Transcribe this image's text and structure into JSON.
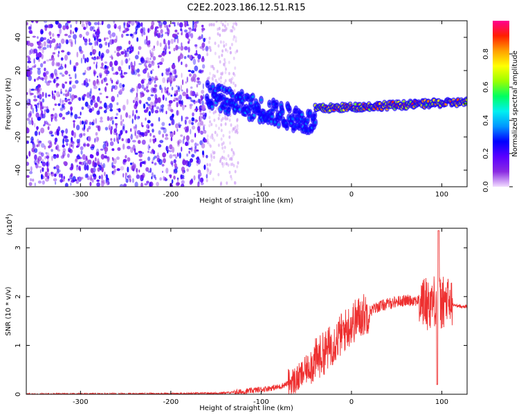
{
  "title": "C2E2.2023.186.12.51.R15",
  "chart_data": [
    {
      "type": "heatmap",
      "xlabel": "Height of straight line (km)",
      "ylabel": "Frequency (Hz)",
      "xlim": [
        -360,
        128
      ],
      "ylim": [
        -50,
        50
      ],
      "xticks": [
        -300,
        -200,
        -100,
        0,
        100
      ],
      "yticks": [
        -40,
        -20,
        0,
        20,
        40
      ],
      "colorbar": {
        "label": "Normalized spectral amplitude",
        "range": [
          0.0,
          1.0
        ],
        "ticks": [
          "0.0",
          "0.2",
          "0.4",
          "0.6",
          "0.8"
        ],
        "colormap": [
          "#f2ddff",
          "#8a2be2",
          "#5a00ff",
          "#0000ff",
          "#0096ff",
          "#00f0f0",
          "#00ff60",
          "#9cff00",
          "#ffff00",
          "#ffa000",
          "#ff2000",
          "#ff0090"
        ]
      },
      "features": [
        {
          "name": "noise_band",
          "x_range": [
            -360,
            -160
          ],
          "freq_range": [
            -50,
            50
          ],
          "amplitude": 0.1
        },
        {
          "name": "ridge_segment",
          "x_range": [
            -160,
            -40
          ],
          "freq_start": 5,
          "freq_end": -12,
          "amplitude": 0.35
        },
        {
          "name": "ridge_segment",
          "x_range": [
            -40,
            128
          ],
          "freq_start": -3,
          "freq_end": 1,
          "amplitude": 0.85
        }
      ]
    },
    {
      "type": "line",
      "xlabel": "Height of straight line (km)",
      "ylabel": "SNR (10 * v/v)",
      "exponent_label": "(x10",
      "exponent_sup": "4",
      "exponent_close": ")",
      "xlim": [
        -360,
        128
      ],
      "ylim": [
        0,
        3.4
      ],
      "xticks": [
        -300,
        -200,
        -100,
        0,
        100
      ],
      "yticks": [
        0,
        1,
        2,
        3
      ],
      "series": [
        {
          "color": "#ee3030",
          "x": [
            -360,
            -200,
            -150,
            -120,
            -100,
            -80,
            -60,
            -50,
            -40,
            -30,
            -20,
            -10,
            0,
            10,
            20,
            30,
            40,
            50,
            60,
            70,
            80,
            85,
            90,
            95,
            100,
            105,
            110,
            115,
            120,
            128
          ],
          "values": [
            0.0,
            0.01,
            0.02,
            0.05,
            0.1,
            0.15,
            0.3,
            0.5,
            0.7,
            0.85,
            1.05,
            1.25,
            1.45,
            1.6,
            1.7,
            1.8,
            1.85,
            1.9,
            1.92,
            1.93,
            1.9,
            1.85,
            1.9,
            1.95,
            1.85,
            1.9,
            1.85,
            1.82,
            1.8,
            1.8
          ]
        }
      ]
    }
  ]
}
